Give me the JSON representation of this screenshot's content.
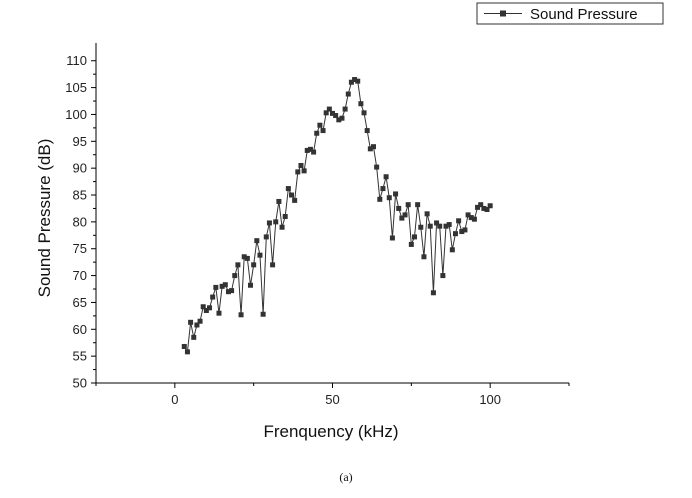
{
  "chart_data": {
    "type": "line",
    "title": "",
    "xlabel": "Frenquency (kHz)",
    "ylabel": "Sound Pressure (dB)",
    "xlim": [
      -25,
      125
    ],
    "ylim": [
      50,
      112
    ],
    "xticks": [
      0,
      50,
      100
    ],
    "yticks": [
      50,
      55,
      60,
      65,
      70,
      75,
      80,
      85,
      90,
      95,
      100,
      105,
      110
    ],
    "grid": false,
    "legend_position": "top-right",
    "caption": "(a)",
    "series": [
      {
        "name": "Sound Pressure",
        "color": "#333333",
        "marker": "square",
        "x": [
          3,
          4,
          5,
          6,
          7,
          8,
          9,
          10,
          11,
          12,
          13,
          14,
          15,
          16,
          17,
          18,
          19,
          20,
          21,
          22,
          23,
          24,
          25,
          26,
          27,
          28,
          29,
          30,
          31,
          32,
          33,
          34,
          35,
          36,
          37,
          38,
          39,
          40,
          41,
          42,
          43,
          44,
          45,
          46,
          47,
          48,
          49,
          50,
          51,
          52,
          53,
          54,
          55,
          56,
          57,
          58,
          59,
          60,
          61,
          62,
          63,
          64,
          65,
          66,
          67,
          68,
          69,
          70,
          71,
          72,
          73,
          74,
          75,
          76,
          77,
          78,
          79,
          80,
          81,
          82,
          83,
          84,
          85,
          86,
          87,
          88,
          89,
          90,
          91,
          92,
          93,
          94,
          95,
          96,
          97,
          98,
          99,
          100
        ],
        "y": [
          56.8,
          55.8,
          61.3,
          58.5,
          60.8,
          61.5,
          64.2,
          63.5,
          64.0,
          66.0,
          67.8,
          63.0,
          68.0,
          68.3,
          67.0,
          67.2,
          70.0,
          72.0,
          62.7,
          73.5,
          73.2,
          68.2,
          72.0,
          76.5,
          73.8,
          62.8,
          77.2,
          79.8,
          72.0,
          80.0,
          83.8,
          79.0,
          81.0,
          86.2,
          85.0,
          84.0,
          89.3,
          90.5,
          89.5,
          93.3,
          93.5,
          93.0,
          96.5,
          98.0,
          97.0,
          100.3,
          101.0,
          100.2,
          99.8,
          99.0,
          99.3,
          101.0,
          103.8,
          106.0,
          106.5,
          106.2,
          102.0,
          100.3,
          97.0,
          93.6,
          94.0,
          90.2,
          84.2,
          86.2,
          88.4,
          84.5,
          77.0,
          85.2,
          82.5,
          80.7,
          81.3,
          83.2,
          75.8,
          77.2,
          83.2,
          79.0,
          73.5,
          81.5,
          79.2,
          66.8,
          79.8,
          79.2,
          70.0,
          79.2,
          79.5,
          74.8,
          77.8,
          80.2,
          78.2,
          78.5,
          81.3,
          80.8,
          80.5,
          82.7,
          83.2,
          82.5,
          82.3,
          83.0
        ]
      }
    ]
  }
}
